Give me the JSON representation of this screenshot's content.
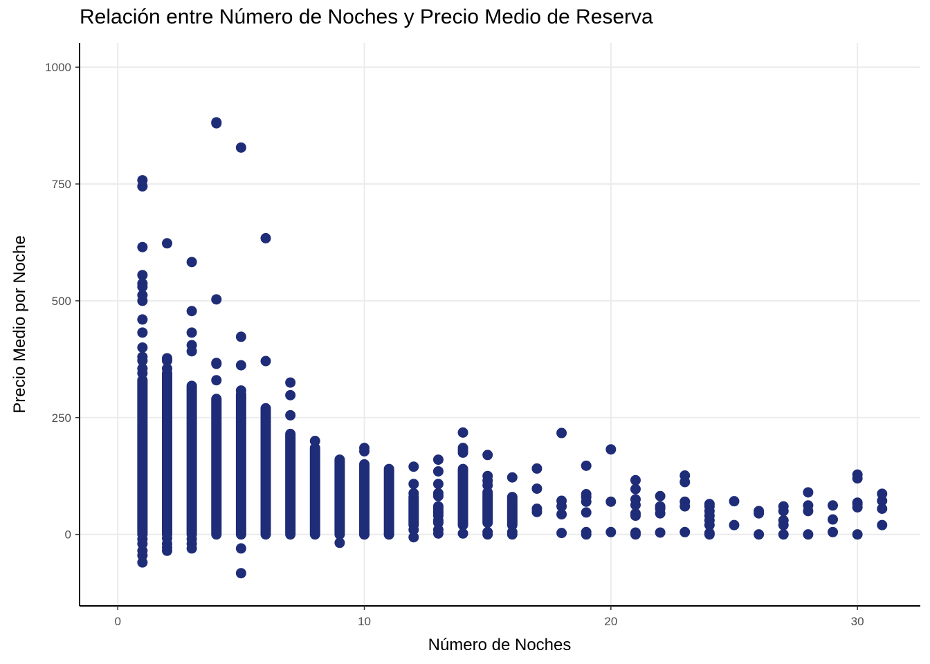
{
  "chart_data": {
    "type": "scatter",
    "title": "Relación entre Número de Noches y Precio Medio de Reserva",
    "xlabel": "Número de Noches",
    "ylabel": "Precio Medio por Noche",
    "xlim": [
      -1.55,
      32.55
    ],
    "ylim": [
      -153,
      1052
    ],
    "x_ticks": [
      0,
      10,
      20,
      30
    ],
    "y_ticks": [
      0,
      250,
      500,
      750,
      1000
    ],
    "grid": true,
    "legend": "none",
    "point_color": "#1f2d78",
    "grid_color": "#ebebeb",
    "ranges": [
      {
        "x": 1,
        "ymin": 0,
        "ymax": 330
      },
      {
        "x": 2,
        "ymin": 0,
        "ymax": 345
      },
      {
        "x": 3,
        "ymin": 0,
        "ymax": 318
      },
      {
        "x": 4,
        "ymin": 0,
        "ymax": 290
      },
      {
        "x": 5,
        "ymin": 0,
        "ymax": 300
      },
      {
        "x": 6,
        "ymin": 0,
        "ymax": 270
      },
      {
        "x": 7,
        "ymin": 0,
        "ymax": 215
      },
      {
        "x": 8,
        "ymin": 0,
        "ymax": 185
      },
      {
        "x": 9,
        "ymin": 0,
        "ymax": 160
      },
      {
        "x": 10,
        "ymin": 0,
        "ymax": 150
      },
      {
        "x": 11,
        "ymin": 0,
        "ymax": 140
      },
      {
        "x": 12,
        "ymin": 20,
        "ymax": 80
      },
      {
        "x": 14,
        "ymin": 20,
        "ymax": 140
      },
      {
        "x": 15,
        "ymin": 25,
        "ymax": 90
      },
      {
        "x": 16,
        "ymin": 20,
        "ymax": 80
      }
    ],
    "points": [
      {
        "x": 1,
        "y": 758
      },
      {
        "x": 1,
        "y": 745
      },
      {
        "x": 1,
        "y": 615
      },
      {
        "x": 1,
        "y": 555
      },
      {
        "x": 1,
        "y": 537
      },
      {
        "x": 1,
        "y": 530
      },
      {
        "x": 1,
        "y": 512
      },
      {
        "x": 1,
        "y": 500
      },
      {
        "x": 1,
        "y": 460
      },
      {
        "x": 1,
        "y": 432
      },
      {
        "x": 1,
        "y": 400
      },
      {
        "x": 1,
        "y": 380
      },
      {
        "x": 1,
        "y": 372
      },
      {
        "x": 1,
        "y": 355
      },
      {
        "x": 1,
        "y": 345
      },
      {
        "x": 1,
        "y": -10
      },
      {
        "x": 1,
        "y": -20
      },
      {
        "x": 1,
        "y": -35
      },
      {
        "x": 1,
        "y": -45
      },
      {
        "x": 1,
        "y": -60
      },
      {
        "x": 2,
        "y": 623
      },
      {
        "x": 2,
        "y": 377
      },
      {
        "x": 2,
        "y": 372
      },
      {
        "x": 2,
        "y": 355
      },
      {
        "x": 2,
        "y": -8
      },
      {
        "x": 2,
        "y": -20
      },
      {
        "x": 2,
        "y": -28
      },
      {
        "x": 2,
        "y": -35
      },
      {
        "x": 3,
        "y": 583
      },
      {
        "x": 3,
        "y": 478
      },
      {
        "x": 3,
        "y": 432
      },
      {
        "x": 3,
        "y": 405
      },
      {
        "x": 3,
        "y": 392
      },
      {
        "x": 3,
        "y": -10
      },
      {
        "x": 3,
        "y": -20
      },
      {
        "x": 3,
        "y": -30
      },
      {
        "x": 4,
        "y": 882
      },
      {
        "x": 4,
        "y": 880
      },
      {
        "x": 4,
        "y": 503
      },
      {
        "x": 4,
        "y": 367
      },
      {
        "x": 4,
        "y": 365
      },
      {
        "x": 4,
        "y": 330
      },
      {
        "x": 5,
        "y": 828
      },
      {
        "x": 5,
        "y": 423
      },
      {
        "x": 5,
        "y": 362
      },
      {
        "x": 5,
        "y": 308
      },
      {
        "x": 5,
        "y": -30
      },
      {
        "x": 5,
        "y": -83
      },
      {
        "x": 6,
        "y": 634
      },
      {
        "x": 6,
        "y": 371
      },
      {
        "x": 7,
        "y": 325
      },
      {
        "x": 7,
        "y": 298
      },
      {
        "x": 7,
        "y": 255
      },
      {
        "x": 8,
        "y": 200
      },
      {
        "x": 9,
        "y": -18
      },
      {
        "x": 10,
        "y": 185
      },
      {
        "x": 10,
        "y": 178
      },
      {
        "x": 10,
        "y": 0
      },
      {
        "x": 11,
        "y": 0
      },
      {
        "x": 12,
        "y": 145
      },
      {
        "x": 12,
        "y": 108
      },
      {
        "x": 12,
        "y": 88
      },
      {
        "x": 12,
        "y": 10
      },
      {
        "x": 12,
        "y": -6
      },
      {
        "x": 13,
        "y": 160
      },
      {
        "x": 13,
        "y": 135
      },
      {
        "x": 13,
        "y": 108
      },
      {
        "x": 13,
        "y": 88
      },
      {
        "x": 13,
        "y": 82
      },
      {
        "x": 13,
        "y": 60
      },
      {
        "x": 13,
        "y": 55
      },
      {
        "x": 13,
        "y": 50
      },
      {
        "x": 13,
        "y": 45
      },
      {
        "x": 13,
        "y": 40
      },
      {
        "x": 13,
        "y": 30
      },
      {
        "x": 13,
        "y": 25
      },
      {
        "x": 13,
        "y": 10
      },
      {
        "x": 13,
        "y": 2
      },
      {
        "x": 14,
        "y": 218
      },
      {
        "x": 14,
        "y": 185
      },
      {
        "x": 14,
        "y": 180
      },
      {
        "x": 14,
        "y": 175
      },
      {
        "x": 14,
        "y": 2
      },
      {
        "x": 15,
        "y": 170
      },
      {
        "x": 15,
        "y": 125
      },
      {
        "x": 15,
        "y": 115
      },
      {
        "x": 15,
        "y": 105
      },
      {
        "x": 15,
        "y": 5
      },
      {
        "x": 15,
        "y": 0
      },
      {
        "x": 16,
        "y": 122
      },
      {
        "x": 16,
        "y": 5
      },
      {
        "x": 16,
        "y": 0
      },
      {
        "x": 17,
        "y": 141
      },
      {
        "x": 17,
        "y": 98
      },
      {
        "x": 17,
        "y": 55
      },
      {
        "x": 17,
        "y": 48
      },
      {
        "x": 18,
        "y": 217
      },
      {
        "x": 18,
        "y": 72
      },
      {
        "x": 18,
        "y": 60
      },
      {
        "x": 18,
        "y": 43
      },
      {
        "x": 18,
        "y": 3
      },
      {
        "x": 19,
        "y": 147
      },
      {
        "x": 19,
        "y": 86
      },
      {
        "x": 19,
        "y": 80
      },
      {
        "x": 19,
        "y": 70
      },
      {
        "x": 19,
        "y": 47
      },
      {
        "x": 19,
        "y": 5
      },
      {
        "x": 19,
        "y": 0
      },
      {
        "x": 20,
        "y": 182
      },
      {
        "x": 20,
        "y": 70
      },
      {
        "x": 20,
        "y": 5
      },
      {
        "x": 21,
        "y": 116
      },
      {
        "x": 21,
        "y": 97
      },
      {
        "x": 21,
        "y": 75
      },
      {
        "x": 21,
        "y": 63
      },
      {
        "x": 21,
        "y": 45
      },
      {
        "x": 21,
        "y": 40
      },
      {
        "x": 21,
        "y": 4
      },
      {
        "x": 21,
        "y": 0
      },
      {
        "x": 22,
        "y": 82
      },
      {
        "x": 22,
        "y": 60
      },
      {
        "x": 22,
        "y": 55
      },
      {
        "x": 22,
        "y": 45
      },
      {
        "x": 22,
        "y": 4
      },
      {
        "x": 23,
        "y": 126
      },
      {
        "x": 23,
        "y": 112
      },
      {
        "x": 23,
        "y": 70
      },
      {
        "x": 23,
        "y": 60
      },
      {
        "x": 23,
        "y": 5
      },
      {
        "x": 24,
        "y": 65
      },
      {
        "x": 24,
        "y": 60
      },
      {
        "x": 24,
        "y": 50
      },
      {
        "x": 24,
        "y": 40
      },
      {
        "x": 24,
        "y": 30
      },
      {
        "x": 24,
        "y": 20
      },
      {
        "x": 24,
        "y": 3
      },
      {
        "x": 24,
        "y": 0
      },
      {
        "x": 25,
        "y": 71
      },
      {
        "x": 25,
        "y": 20
      },
      {
        "x": 26,
        "y": 50
      },
      {
        "x": 26,
        "y": 45
      },
      {
        "x": 26,
        "y": 0
      },
      {
        "x": 27,
        "y": 60
      },
      {
        "x": 27,
        "y": 50
      },
      {
        "x": 27,
        "y": 30
      },
      {
        "x": 27,
        "y": 20
      },
      {
        "x": 27,
        "y": 0
      },
      {
        "x": 28,
        "y": 90
      },
      {
        "x": 28,
        "y": 62
      },
      {
        "x": 28,
        "y": 50
      },
      {
        "x": 28,
        "y": 0
      },
      {
        "x": 29,
        "y": 62
      },
      {
        "x": 29,
        "y": 32
      },
      {
        "x": 29,
        "y": 5
      },
      {
        "x": 30,
        "y": 128
      },
      {
        "x": 30,
        "y": 120
      },
      {
        "x": 30,
        "y": 68
      },
      {
        "x": 30,
        "y": 65
      },
      {
        "x": 30,
        "y": 58
      },
      {
        "x": 30,
        "y": 0
      },
      {
        "x": 31,
        "y": 87
      },
      {
        "x": 31,
        "y": 72
      },
      {
        "x": 31,
        "y": 55
      },
      {
        "x": 31,
        "y": 20
      }
    ]
  }
}
